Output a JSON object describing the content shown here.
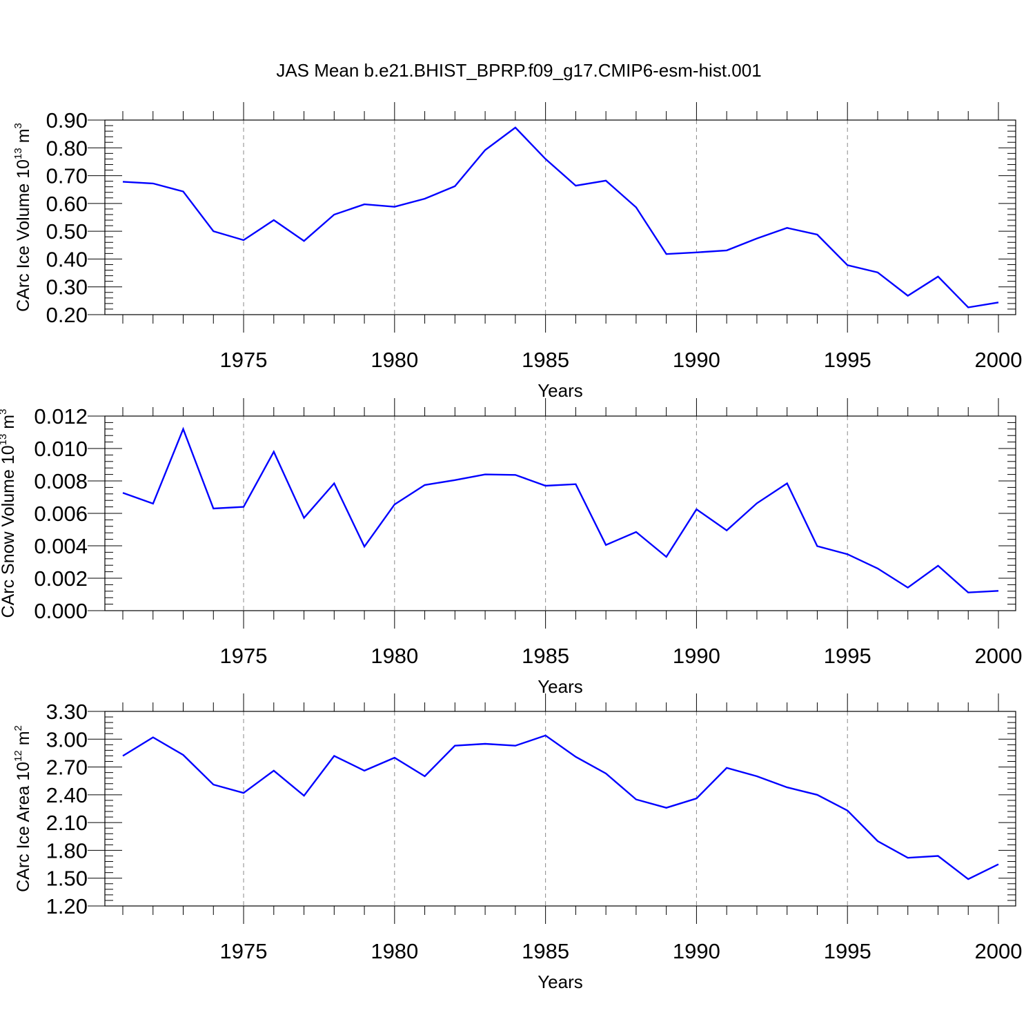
{
  "title": "JAS Mean b.e21.BHIST_BPRP.f09_g17.CMIP6-esm-hist.001",
  "colors": {
    "line": "#0000ff",
    "axis": "#000000",
    "grid": "#888888"
  },
  "chart_data": [
    {
      "type": "line",
      "title": "",
      "xlabel": "Years",
      "ylabel": "CArc Ice Volume 10",
      "ylabel_exp": "13",
      "ylabel_unit": "m",
      "ylabel_unit_exp": "3",
      "xlim": [
        1971,
        2000
      ],
      "ylim": [
        0.2,
        0.9
      ],
      "xticks": [
        1975,
        1980,
        1985,
        1990,
        1995,
        2000
      ],
      "xtick_labels": [
        "1975",
        "1980",
        "1985",
        "1990",
        "1995",
        "2000"
      ],
      "yticks": [
        0.2,
        0.3,
        0.4,
        0.5,
        0.6,
        0.7,
        0.8,
        0.9
      ],
      "ytick_labels": [
        "0.20",
        "0.30",
        "0.40",
        "0.50",
        "0.60",
        "0.70",
        "0.80",
        "0.90"
      ],
      "grid_x": true,
      "x": [
        1971,
        1972,
        1973,
        1974,
        1975,
        1976,
        1977,
        1978,
        1979,
        1980,
        1981,
        1982,
        1983,
        1984,
        1985,
        1986,
        1987,
        1988,
        1989,
        1990,
        1991,
        1992,
        1993,
        1994,
        1995,
        1996,
        1997,
        1998,
        1999,
        2000
      ],
      "series": [
        {
          "values": [
            0.678,
            0.672,
            0.643,
            0.5,
            0.468,
            0.54,
            0.465,
            0.56,
            0.597,
            0.588,
            0.617,
            0.662,
            0.792,
            0.873,
            0.76,
            0.664,
            0.682,
            0.586,
            0.418,
            0.424,
            0.431,
            0.474,
            0.512,
            0.488,
            0.378,
            0.352,
            0.268,
            0.337,
            0.226,
            0.244
          ]
        }
      ]
    },
    {
      "type": "line",
      "title": "",
      "xlabel": "Years",
      "ylabel": "CArc Snow Volume 10",
      "ylabel_exp": "13",
      "ylabel_unit": "m",
      "ylabel_unit_exp": "3",
      "xlim": [
        1971,
        2000
      ],
      "ylim": [
        0.0,
        0.012
      ],
      "xticks": [
        1975,
        1980,
        1985,
        1990,
        1995,
        2000
      ],
      "xtick_labels": [
        "1975",
        "1980",
        "1985",
        "1990",
        "1995",
        "2000"
      ],
      "yticks": [
        0.0,
        0.002,
        0.004,
        0.006,
        0.008,
        0.01,
        0.012
      ],
      "ytick_labels": [
        "0.000",
        "0.002",
        "0.004",
        "0.006",
        "0.008",
        "0.010",
        "0.012"
      ],
      "grid_x": true,
      "x": [
        1971,
        1972,
        1973,
        1974,
        1975,
        1976,
        1977,
        1978,
        1979,
        1980,
        1981,
        1982,
        1983,
        1984,
        1985,
        1986,
        1987,
        1988,
        1989,
        1990,
        1991,
        1992,
        1993,
        1994,
        1995,
        1996,
        1997,
        1998,
        1999,
        2000
      ],
      "series": [
        {
          "values": [
            0.00727,
            0.0066,
            0.0112,
            0.0063,
            0.0064,
            0.0098,
            0.00572,
            0.00785,
            0.00395,
            0.00655,
            0.00775,
            0.00805,
            0.0084,
            0.00837,
            0.0077,
            0.0078,
            0.00405,
            0.00485,
            0.00332,
            0.00625,
            0.00495,
            0.00662,
            0.00785,
            0.00398,
            0.00348,
            0.0026,
            0.00142,
            0.00277,
            0.00112,
            0.00122
          ]
        }
      ]
    },
    {
      "type": "line",
      "title": "",
      "xlabel": "Years",
      "ylabel": "CArc Ice Area 10",
      "ylabel_exp": "12",
      "ylabel_unit": "m",
      "ylabel_unit_exp": "2",
      "xlim": [
        1971,
        2000
      ],
      "ylim": [
        1.2,
        3.3
      ],
      "xticks": [
        1975,
        1980,
        1985,
        1990,
        1995,
        2000
      ],
      "xtick_labels": [
        "1975",
        "1980",
        "1985",
        "1990",
        "1995",
        "2000"
      ],
      "yticks": [
        1.2,
        1.5,
        1.8,
        2.1,
        2.4,
        2.7,
        3.0,
        3.3
      ],
      "ytick_labels": [
        "1.20",
        "1.50",
        "1.80",
        "2.10",
        "2.40",
        "2.70",
        "3.00",
        "3.30"
      ],
      "grid_x": true,
      "x": [
        1971,
        1972,
        1973,
        1974,
        1975,
        1976,
        1977,
        1978,
        1979,
        1980,
        1981,
        1982,
        1983,
        1984,
        1985,
        1986,
        1987,
        1988,
        1989,
        1990,
        1991,
        1992,
        1993,
        1994,
        1995,
        1996,
        1997,
        1998,
        1999,
        2000
      ],
      "series": [
        {
          "values": [
            2.82,
            3.02,
            2.83,
            2.51,
            2.42,
            2.66,
            2.39,
            2.82,
            2.66,
            2.8,
            2.6,
            2.93,
            2.95,
            2.93,
            3.04,
            2.81,
            2.63,
            2.35,
            2.26,
            2.36,
            2.69,
            2.6,
            2.48,
            2.4,
            2.23,
            1.9,
            1.72,
            1.74,
            1.49,
            1.65
          ]
        }
      ]
    }
  ]
}
